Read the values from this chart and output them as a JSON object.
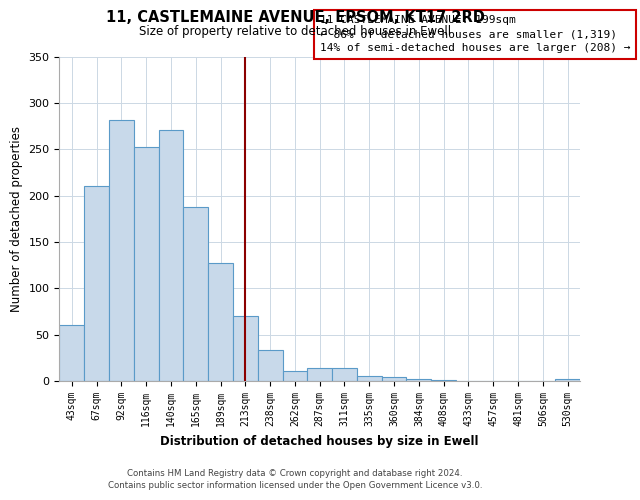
{
  "title": "11, CASTLEMAINE AVENUE, EPSOM, KT17 2RD",
  "subtitle": "Size of property relative to detached houses in Ewell",
  "xlabel": "Distribution of detached houses by size in Ewell",
  "ylabel": "Number of detached properties",
  "bar_labels": [
    "43sqm",
    "67sqm",
    "92sqm",
    "116sqm",
    "140sqm",
    "165sqm",
    "189sqm",
    "213sqm",
    "238sqm",
    "262sqm",
    "287sqm",
    "311sqm",
    "335sqm",
    "360sqm",
    "384sqm",
    "408sqm",
    "433sqm",
    "457sqm",
    "481sqm",
    "506sqm",
    "530sqm"
  ],
  "bar_values": [
    61,
    210,
    282,
    252,
    271,
    188,
    127,
    70,
    34,
    11,
    14,
    14,
    6,
    4,
    2,
    1,
    0,
    0,
    0,
    0,
    2
  ],
  "bar_color": "#c8d9ea",
  "bar_edge_color": "#5a9ac8",
  "vline_x_index": 7.0,
  "annotation_line1": "11 CASTLEMAINE AVENUE: 199sqm",
  "annotation_line2": "← 86% of detached houses are smaller (1,319)",
  "annotation_line3": "14% of semi-detached houses are larger (208) →",
  "annotation_box_color": "#ffffff",
  "annotation_box_edge_color": "#cc0000",
  "vline_color": "#8b0000",
  "ylim": [
    0,
    350
  ],
  "yticks": [
    0,
    50,
    100,
    150,
    200,
    250,
    300,
    350
  ],
  "footer_line1": "Contains HM Land Registry data © Crown copyright and database right 2024.",
  "footer_line2": "Contains public sector information licensed under the Open Government Licence v3.0.",
  "bg_color": "#ffffff",
  "grid_color": "#ccd8e4"
}
